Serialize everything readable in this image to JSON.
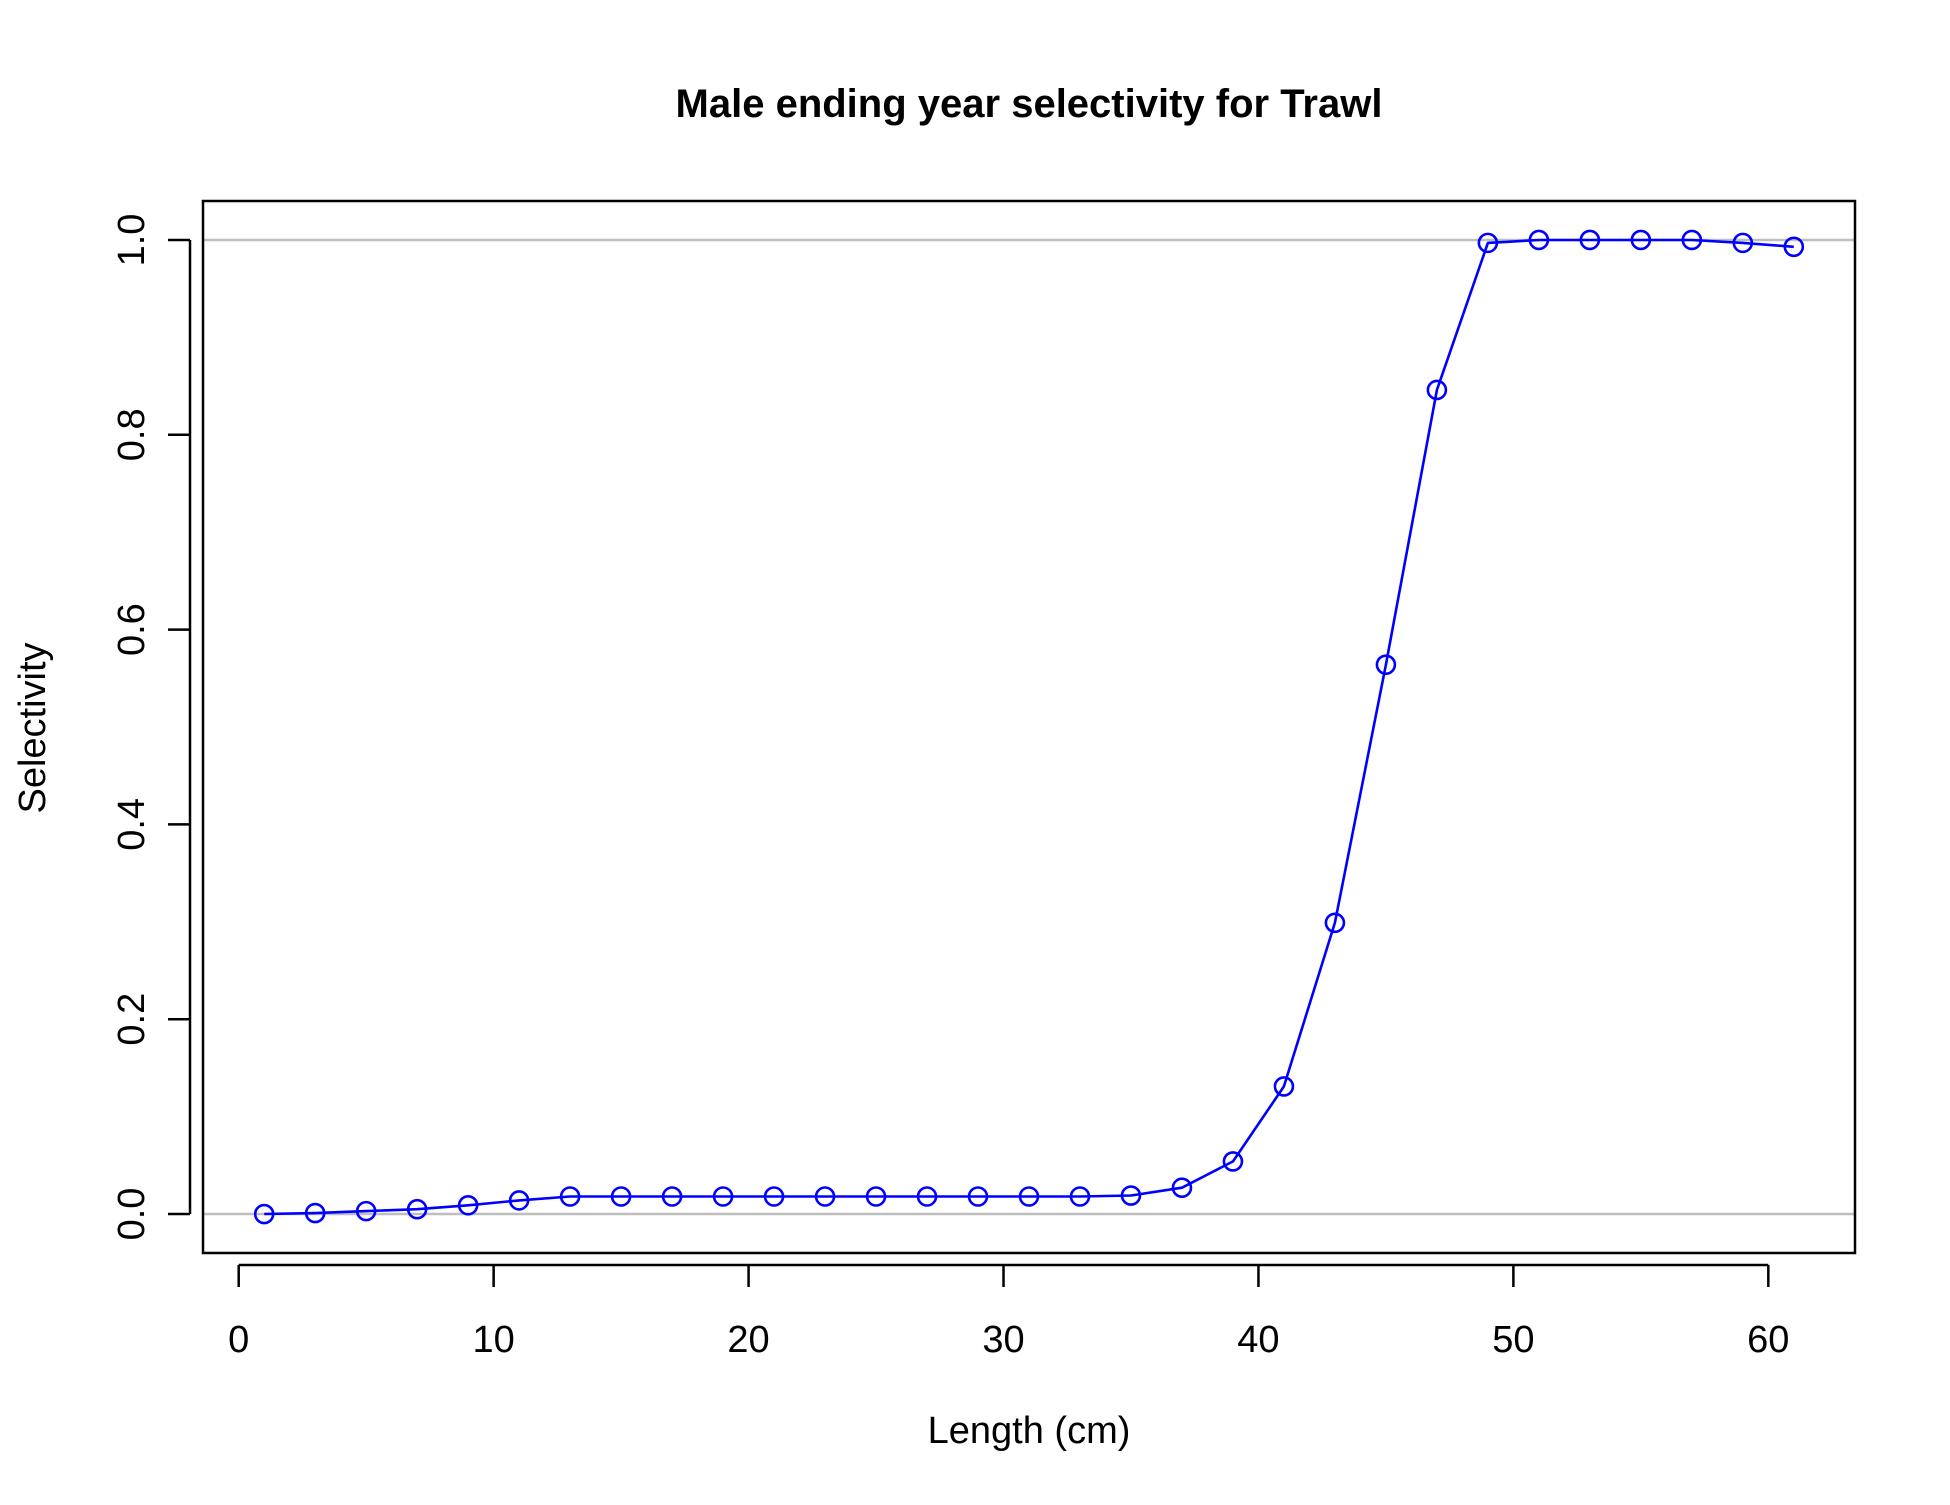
{
  "chart_data": {
    "type": "line",
    "title": "Male ending year selectivity for Trawl",
    "xlabel": "Length (cm)",
    "ylabel": "Selectivity",
    "xlim": [
      -1.4,
      63.4
    ],
    "ylim": [
      -0.04,
      1.04
    ],
    "xticks": [
      0,
      10,
      20,
      30,
      40,
      50,
      60
    ],
    "yticks": [
      0.0,
      0.2,
      0.4,
      0.6,
      0.8,
      1.0
    ],
    "xtick_labels": [
      "0",
      "10",
      "20",
      "30",
      "40",
      "50",
      "60"
    ],
    "ytick_labels": [
      "0.0",
      "0.2",
      "0.4",
      "0.6",
      "0.8",
      "1.0"
    ],
    "reference_lines": [
      0,
      1
    ],
    "grid": false,
    "colors": {
      "series": "#0000ff",
      "reference_line": "#bebebe",
      "axis": "#000000"
    },
    "series": [
      {
        "marker": "open-circle",
        "x": [
          1,
          3,
          5,
          7,
          9,
          11,
          13,
          15,
          17,
          19,
          21,
          23,
          25,
          27,
          29,
          31,
          33,
          35,
          37,
          39,
          41,
          43,
          45,
          47,
          49,
          51,
          53,
          55,
          57,
          59,
          61
        ],
        "y": [
          0.0,
          0.001,
          0.003,
          0.005,
          0.009,
          0.014,
          0.018,
          0.018,
          0.018,
          0.018,
          0.018,
          0.018,
          0.018,
          0.018,
          0.018,
          0.018,
          0.018,
          0.019,
          0.027,
          0.054,
          0.131,
          0.299,
          0.564,
          0.846,
          0.997,
          1.0,
          1.0,
          1.0,
          1.0,
          0.997,
          0.993
        ]
      }
    ]
  }
}
